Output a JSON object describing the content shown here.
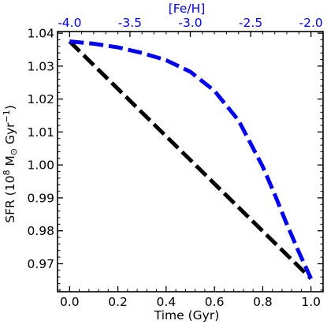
{
  "chart_data": {
    "type": "line",
    "xlabel": "Time (Gyr)",
    "ylabel_main": "SFR (10",
    "ylabel_exp": "8",
    "ylabel_unit_a": " M",
    "ylabel_sun": "⊙",
    "ylabel_unit_b": " Gyr",
    "ylabel_exp2": "−1",
    "ylabel_close": ")",
    "top_xlabel": "[Fe/H]",
    "xlim": [
      -0.05,
      1.05
    ],
    "ylim": [
      0.9615,
      1.0405
    ],
    "top_xlim": [
      -4.0,
      -2.0
    ],
    "x_ticks": [
      0.0,
      0.2,
      0.4,
      0.6,
      0.8,
      1.0
    ],
    "x_tick_labels": [
      "0.0",
      "0.2",
      "0.4",
      "0.6",
      "0.8",
      "1.0"
    ],
    "y_ticks": [
      0.97,
      0.98,
      0.99,
      1.0,
      1.01,
      1.02,
      1.03,
      1.04
    ],
    "y_tick_labels": [
      "0.97",
      "0.98",
      "0.99",
      "1.00",
      "1.01",
      "1.02",
      "1.03",
      "1.04"
    ],
    "top_ticks": [
      -4.0,
      -3.5,
      -3.0,
      -2.5,
      -2.0
    ],
    "top_tick_labels": [
      "-4.0",
      "-3.5",
      "-3.0",
      "-2.5",
      "-2.0"
    ],
    "series": [
      {
        "color": "#000000",
        "style": "dashed",
        "x": [
          0.0,
          1.0
        ],
        "y": [
          1.0375,
          0.9655
        ]
      },
      {
        "color": "#0000ee",
        "style": "dashed",
        "x": [
          0.0,
          0.1,
          0.2,
          0.3,
          0.4,
          0.5,
          0.6,
          0.7,
          0.8,
          0.85,
          0.9,
          0.95,
          1.0
        ],
        "y": [
          1.0375,
          1.0368,
          1.0357,
          1.034,
          1.0318,
          1.0283,
          1.0225,
          1.0135,
          0.9995,
          0.991,
          0.982,
          0.9735,
          0.9655
        ]
      }
    ],
    "colors": {
      "top_axis": "#0000ee",
      "axes": "#000000"
    }
  }
}
